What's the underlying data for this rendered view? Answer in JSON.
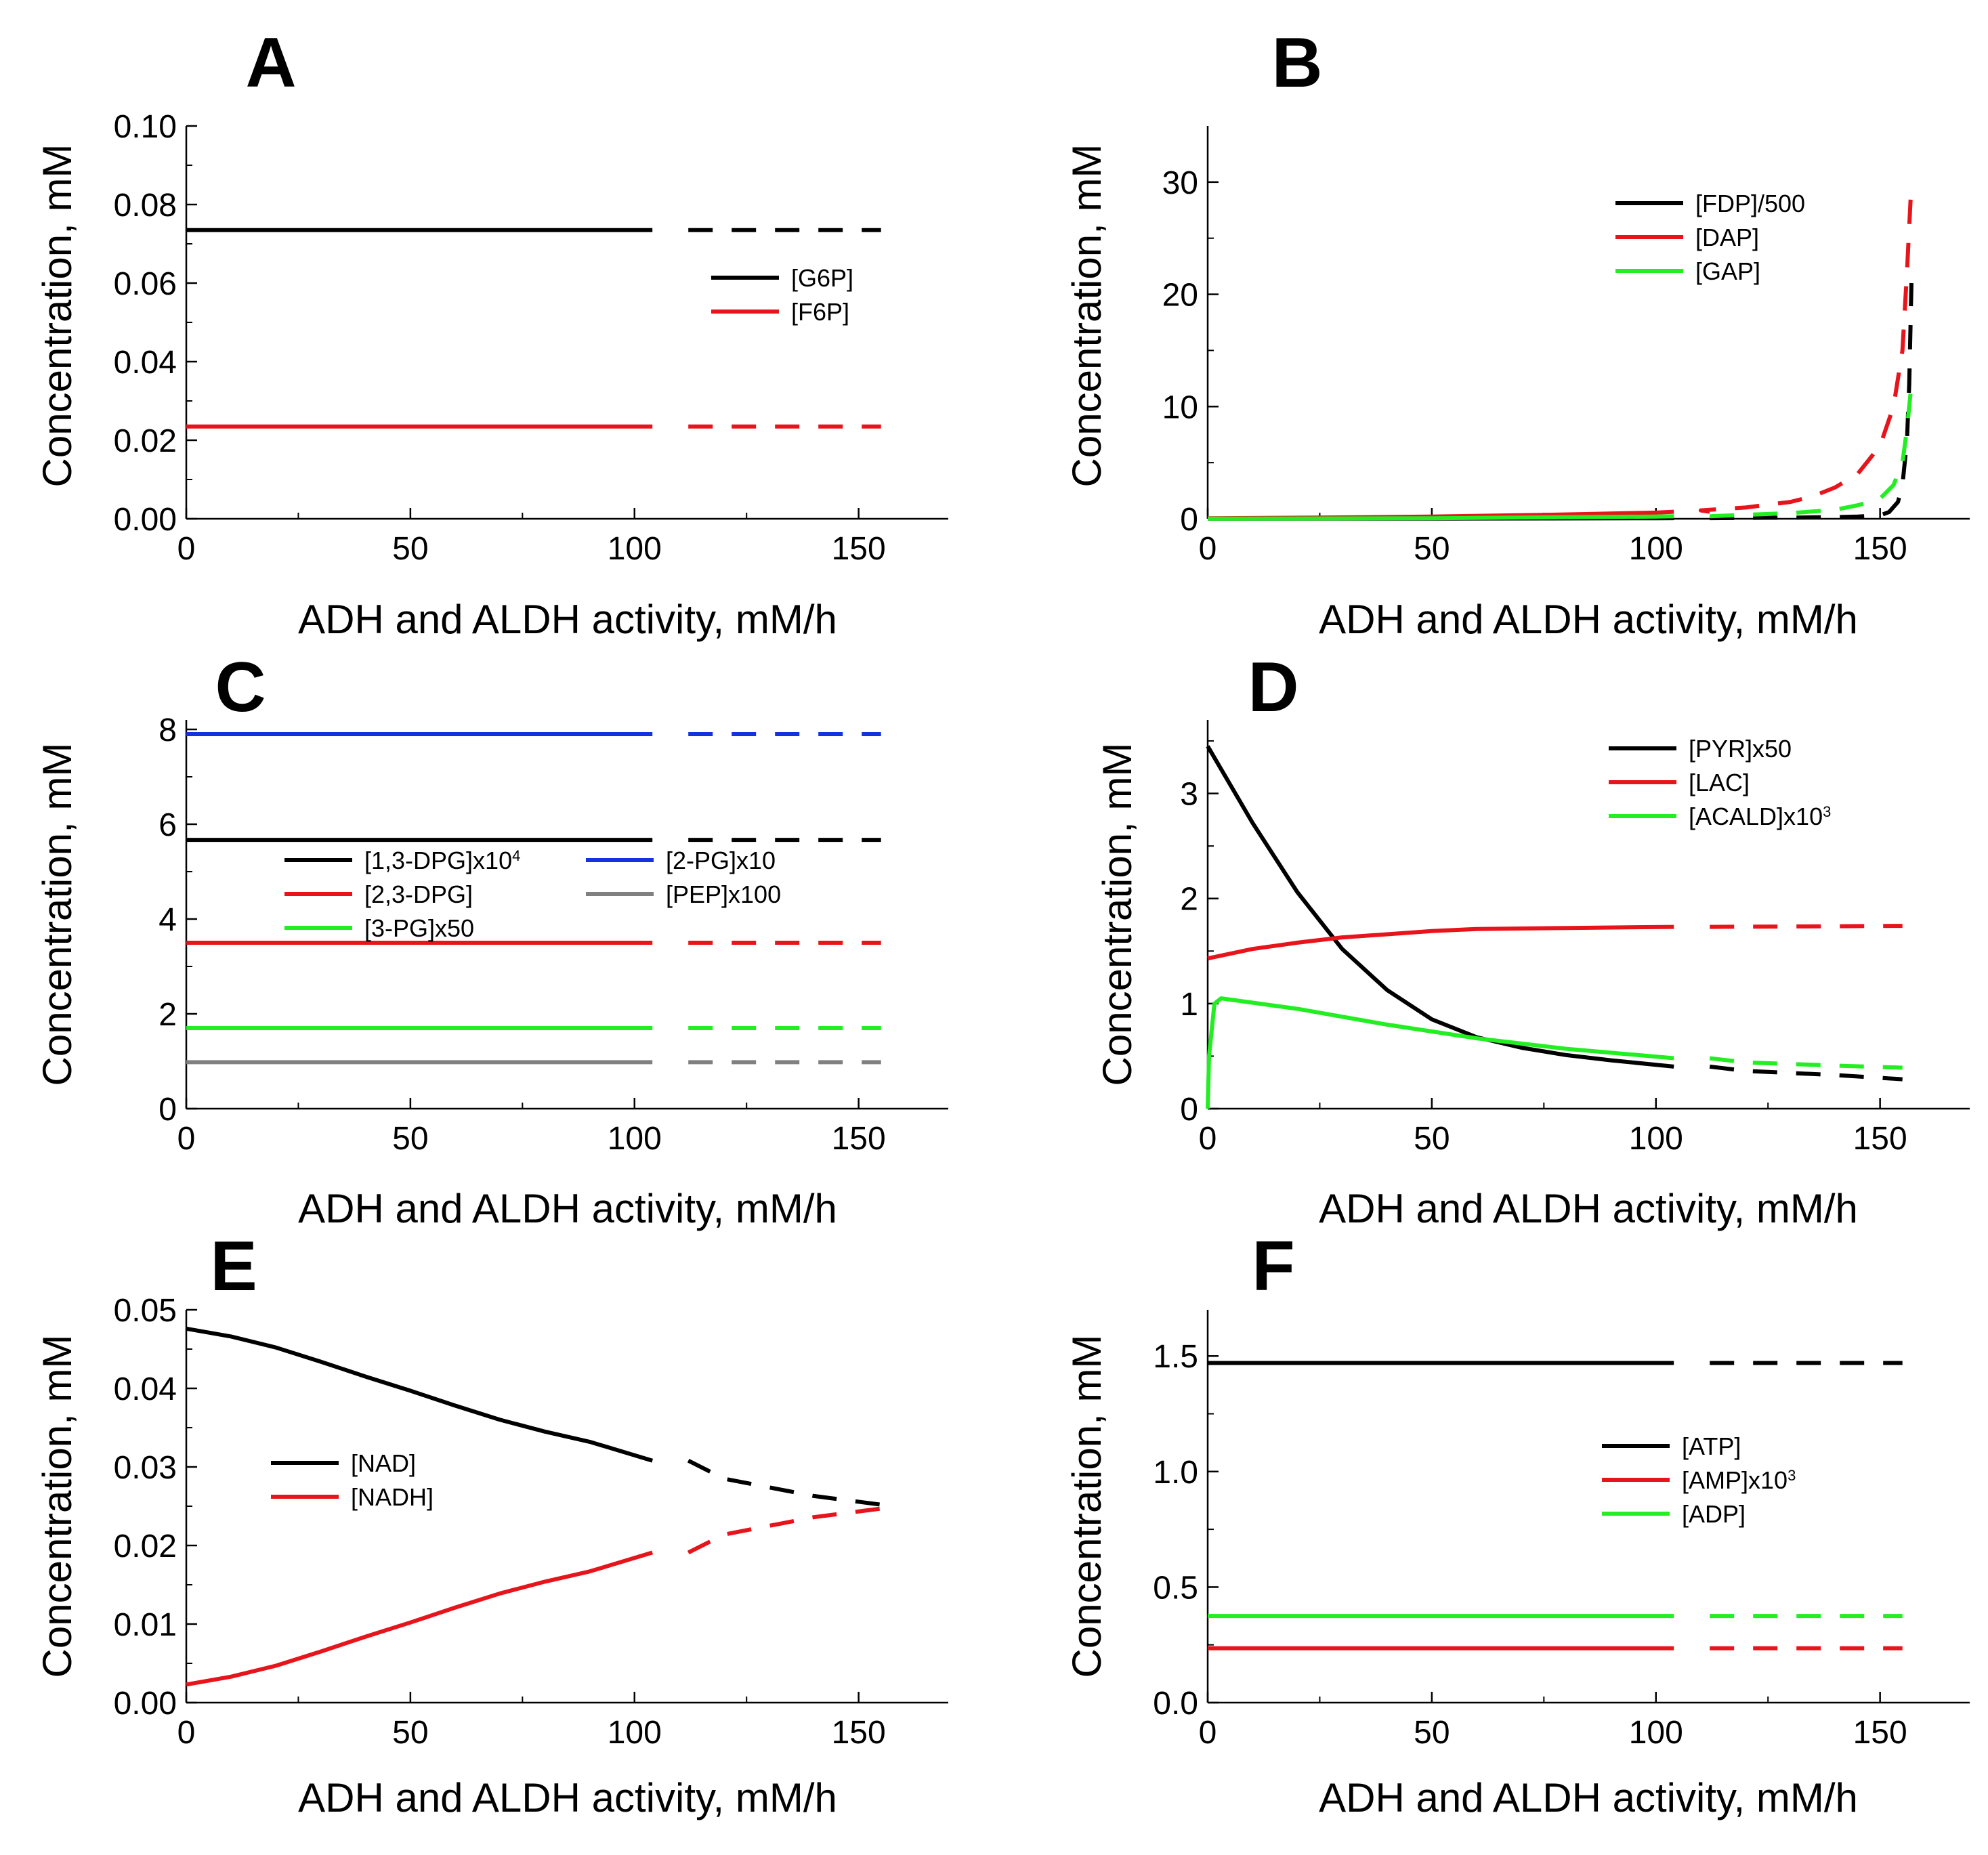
{
  "figure": {
    "shared_xlabel": "ADH and ALDH activity,   mM/h",
    "shared_ylabel": "Concentration,   mM"
  },
  "chart_data": [
    {
      "panel": "A",
      "type": "line",
      "xlabel": "ADH and ALDH activity,   mM/h",
      "ylabel": "Concentration,   mM",
      "xlim": [
        0,
        170
      ],
      "ylim": [
        0,
        0.1
      ],
      "xticks": [
        0,
        50,
        100,
        150
      ],
      "xtick_labels": [
        "0",
        "50",
        "100",
        "150"
      ],
      "yticks": [
        0,
        0.02,
        0.04,
        0.06,
        0.08,
        0.1
      ],
      "ytick_labels": [
        "0.00",
        "0.02",
        "0.04",
        "0.06",
        "0.08",
        "0.10"
      ],
      "legend": "center-right",
      "solid_until": 104,
      "series": [
        {
          "name": "[G6P]",
          "color": "#000000",
          "x": [
            0,
            104,
            155
          ],
          "y": [
            0.0735,
            0.0735,
            0.0735
          ]
        },
        {
          "name": "[F6P]",
          "color": "#e8141b",
          "x": [
            0,
            104,
            155
          ],
          "y": [
            0.0235,
            0.0235,
            0.0235
          ]
        }
      ]
    },
    {
      "panel": "B",
      "type": "line",
      "xlabel": "ADH and ALDH activity,   mM/h",
      "ylabel": "Concentration,   mM",
      "xlim": [
        0,
        170
      ],
      "ylim": [
        0,
        35
      ],
      "xticks": [
        0,
        50,
        100,
        150
      ],
      "xtick_labels": [
        "0",
        "50",
        "100",
        "150"
      ],
      "yticks": [
        0,
        10,
        20,
        30
      ],
      "ytick_labels": [
        "0",
        "10",
        "20",
        "30"
      ],
      "legend": "top-right",
      "solid_until": 104,
      "series": [
        {
          "name": "[FDP]/500",
          "color": "#000000",
          "x": [
            0,
            50,
            100,
            120,
            130,
            140,
            145,
            150,
            152,
            154,
            155,
            156,
            156.5,
            157
          ],
          "y": [
            0.01,
            0.02,
            0.05,
            0.08,
            0.1,
            0.15,
            0.2,
            0.3,
            0.6,
            1.5,
            3,
            7,
            12,
            21
          ]
        },
        {
          "name": "[DAP]",
          "color": "#e8141b",
          "x": [
            0,
            25,
            50,
            75,
            100,
            110,
            120,
            130,
            135,
            140,
            145,
            150,
            153,
            155,
            156,
            157
          ],
          "y": [
            0.05,
            0.1,
            0.2,
            0.35,
            0.55,
            0.75,
            1,
            1.5,
            2,
            2.8,
            4,
            6.5,
            10,
            15,
            22,
            30
          ]
        },
        {
          "name": "[GAP]",
          "color": "#22ee22",
          "x": [
            0,
            50,
            100,
            120,
            130,
            140,
            145,
            150,
            153,
            155,
            156,
            157
          ],
          "y": [
            0.01,
            0.05,
            0.2,
            0.35,
            0.5,
            0.8,
            1.2,
            1.8,
            3,
            5,
            8,
            12
          ]
        }
      ]
    },
    {
      "panel": "C",
      "type": "line",
      "xlabel": "ADH and ALDH activity,   mM/h",
      "ylabel": "Concentration,   mM",
      "xlim": [
        0,
        170
      ],
      "ylim": [
        0,
        8.2
      ],
      "xticks": [
        0,
        50,
        100,
        150
      ],
      "xtick_labels": [
        "0",
        "50",
        "100",
        "150"
      ],
      "yticks": [
        0,
        2,
        4,
        6,
        8
      ],
      "ytick_labels": [
        "0",
        "2",
        "4",
        "6",
        "8"
      ],
      "legend": "center-left",
      "solid_until": 104,
      "series": [
        {
          "name": "[1,3-DPG]x10",
          "sup": "4",
          "color": "#000000",
          "x": [
            0,
            104,
            155
          ],
          "y": [
            5.67,
            5.67,
            5.67
          ]
        },
        {
          "name": "[2,3-DPG]",
          "color": "#e8141b",
          "x": [
            0,
            104,
            155
          ],
          "y": [
            3.5,
            3.5,
            3.5
          ]
        },
        {
          "name": "[3-PG]x50",
          "color": "#22ee22",
          "x": [
            0,
            104,
            155
          ],
          "y": [
            1.7,
            1.7,
            1.7
          ]
        },
        {
          "name": "[2-PG]x10",
          "color": "#1432e0",
          "x": [
            0,
            104,
            155
          ],
          "y": [
            7.9,
            7.9,
            7.9
          ]
        },
        {
          "name": "[PEP]x100",
          "color": "#808080",
          "x": [
            0,
            104,
            155
          ],
          "y": [
            0.98,
            0.98,
            0.98
          ]
        }
      ]
    },
    {
      "panel": "D",
      "type": "line",
      "xlabel": "ADH and ALDH activity,   mM/h",
      "ylabel": "Concentration,   mM",
      "xlim": [
        0,
        170
      ],
      "ylim": [
        0,
        3.7
      ],
      "xticks": [
        0,
        50,
        100,
        150
      ],
      "xtick_labels": [
        "0",
        "50",
        "100",
        "150"
      ],
      "yticks": [
        0,
        1,
        2,
        3
      ],
      "ytick_labels": [
        "0",
        "1",
        "2",
        "3"
      ],
      "legend": "top-right",
      "solid_until": 104,
      "series": [
        {
          "name": "[PYR]x50",
          "color": "#000000",
          "x": [
            0,
            10,
            20,
            30,
            40,
            50,
            60,
            70,
            80,
            90,
            104,
            120,
            140,
            155
          ],
          "y": [
            3.45,
            2.72,
            2.06,
            1.52,
            1.13,
            0.85,
            0.68,
            0.58,
            0.51,
            0.46,
            0.4,
            0.36,
            0.32,
            0.28
          ]
        },
        {
          "name": "[LAC]",
          "color": "#e8141b",
          "x": [
            0,
            10,
            20,
            30,
            40,
            50,
            60,
            80,
            104,
            155
          ],
          "y": [
            1.43,
            1.52,
            1.58,
            1.63,
            1.66,
            1.69,
            1.71,
            1.72,
            1.73,
            1.74
          ]
        },
        {
          "name": "[ACALD]x10",
          "sup": "3",
          "color": "#22ee22",
          "x": [
            0,
            0.3,
            1.5,
            3,
            20,
            40,
            60,
            80,
            104,
            120,
            140,
            155
          ],
          "y": [
            0,
            0.5,
            1.0,
            1.05,
            0.95,
            0.8,
            0.67,
            0.57,
            0.48,
            0.44,
            0.41,
            0.39
          ]
        }
      ]
    },
    {
      "panel": "E",
      "type": "line",
      "xlabel": "ADH and ALDH activity,   mM/h",
      "ylabel": "Concentration,   mM",
      "xlim": [
        0,
        170
      ],
      "ylim": [
        0,
        0.05
      ],
      "xticks": [
        0,
        50,
        100,
        150
      ],
      "xtick_labels": [
        "0",
        "50",
        "100",
        "150"
      ],
      "yticks": [
        0,
        0.01,
        0.02,
        0.03,
        0.04,
        0.05
      ],
      "ytick_labels": [
        "0.00",
        "0.01",
        "0.02",
        "0.03",
        "0.04",
        "0.05"
      ],
      "legend": "center-left",
      "solid_until": 104,
      "series": [
        {
          "name": "[NAD]",
          "color": "#000000",
          "x": [
            0,
            10,
            20,
            30,
            40,
            50,
            60,
            70,
            80,
            90,
            104,
            120,
            140,
            155
          ],
          "y": [
            0.0476,
            0.0466,
            0.0452,
            0.0434,
            0.0415,
            0.0397,
            0.0378,
            0.036,
            0.0345,
            0.0332,
            0.0308,
            0.0285,
            0.0263,
            0.0252
          ]
        },
        {
          "name": "[NADH]",
          "color": "#e8141b",
          "x": [
            0,
            10,
            20,
            30,
            40,
            50,
            60,
            70,
            80,
            90,
            104,
            120,
            140,
            155
          ],
          "y": [
            0.0023,
            0.0033,
            0.0047,
            0.0065,
            0.0084,
            0.0102,
            0.0121,
            0.0139,
            0.0154,
            0.0167,
            0.0191,
            0.0214,
            0.0236,
            0.0247
          ]
        }
      ]
    },
    {
      "panel": "F",
      "type": "line",
      "xlabel": "ADH and ALDH activity,   mM/h",
      "ylabel": "Concentration,   mM",
      "xlim": [
        0,
        170
      ],
      "ylim": [
        0,
        1.7
      ],
      "xticks": [
        0,
        50,
        100,
        150
      ],
      "xtick_labels": [
        "0",
        "50",
        "100",
        "150"
      ],
      "yticks": [
        0,
        0.5,
        1.0,
        1.5
      ],
      "ytick_labels": [
        "0.0",
        "0.5",
        "1.0",
        "1.5"
      ],
      "legend": "center-right",
      "solid_until": 104,
      "series": [
        {
          "name": "[ATP]",
          "color": "#000000",
          "x": [
            0,
            104,
            155
          ],
          "y": [
            1.47,
            1.47,
            1.47
          ]
        },
        {
          "name": "[AMP]x10",
          "sup": "3",
          "color": "#e8141b",
          "x": [
            0,
            104,
            155
          ],
          "y": [
            0.235,
            0.235,
            0.235
          ]
        },
        {
          "name": "[ADP]",
          "color": "#22ee22",
          "x": [
            0,
            104,
            155
          ],
          "y": [
            0.375,
            0.375,
            0.375
          ]
        }
      ]
    }
  ]
}
